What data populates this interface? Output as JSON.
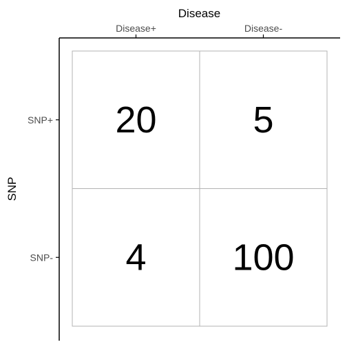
{
  "chart_data": {
    "type": "table",
    "x_axis": {
      "title": "Disease",
      "position": "top",
      "categories": [
        "Disease+",
        "Disease-"
      ]
    },
    "y_axis": {
      "title": "SNP",
      "categories": [
        "SNP+",
        "SNP-"
      ]
    },
    "cells": [
      {
        "row": "SNP+",
        "col": "Disease+",
        "value": 20
      },
      {
        "row": "SNP+",
        "col": "Disease-",
        "value": 5
      },
      {
        "row": "SNP-",
        "col": "Disease+",
        "value": 4
      },
      {
        "row": "SNP-",
        "col": "Disease-",
        "value": 100
      }
    ],
    "grid": true,
    "legend": "none"
  },
  "colors": {
    "background": "#ffffff",
    "axis_line": "#000000",
    "cell_border": "#b3b3b3",
    "text": "#000000",
    "tick_label": "#4d4d4d"
  }
}
